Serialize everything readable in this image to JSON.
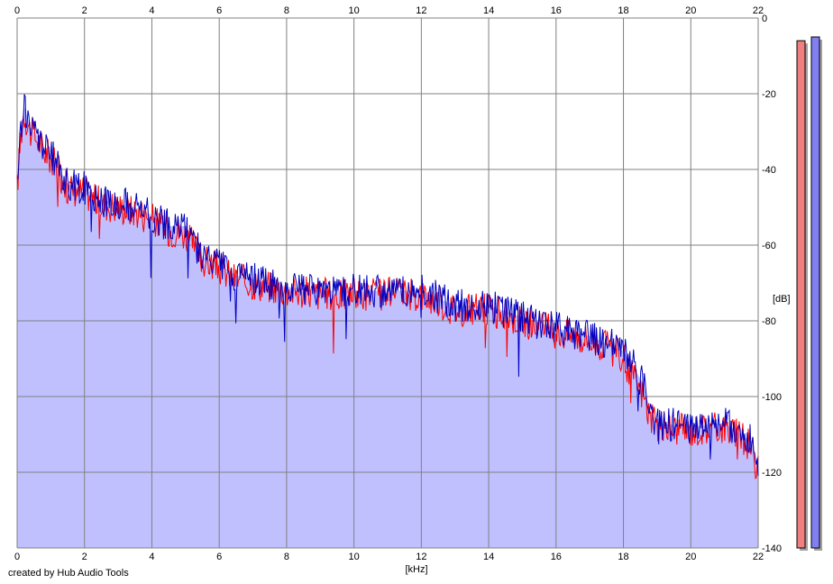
{
  "chart_data": {
    "type": "area",
    "xlabel": "[kHz]",
    "ylabel": "[dB]",
    "xlim": [
      0,
      22
    ],
    "ylim": [
      -140,
      0
    ],
    "x_ticks": [
      0,
      2,
      4,
      6,
      8,
      10,
      12,
      14,
      16,
      18,
      20,
      22
    ],
    "y_ticks": [
      0,
      -20,
      -40,
      -60,
      -80,
      -100,
      -120,
      -140
    ],
    "grid": true,
    "series": [
      {
        "color": "#ff0000",
        "x": [
          0,
          0.1,
          0.2,
          0.4,
          0.6,
          0.8,
          1.0,
          1.2,
          1.5,
          2.0,
          2.5,
          3.0,
          3.5,
          4.0,
          4.5,
          5.0,
          5.5,
          6.0,
          6.5,
          7.0,
          8.0,
          9.0,
          10.0,
          11.0,
          12.0,
          12.5,
          13.0,
          14.0,
          15.0,
          16.0,
          16.5,
          17.0,
          17.5,
          18.0,
          18.3,
          18.6,
          18.8,
          19.0,
          20.0,
          21.0,
          21.8,
          22.0
        ],
        "y": [
          -45,
          -32,
          -25,
          -30,
          -32,
          -35,
          -37,
          -40,
          -45,
          -46,
          -49,
          -50,
          -51,
          -53,
          -56,
          -57,
          -64,
          -66,
          -69,
          -70,
          -72,
          -73,
          -73,
          -73,
          -73,
          -75,
          -77,
          -77,
          -80,
          -83,
          -84,
          -85,
          -87,
          -90,
          -95,
          -100,
          -106,
          -108,
          -109,
          -108,
          -113,
          -120
        ]
      },
      {
        "color": "#0000c0",
        "x": [
          0,
          0.1,
          0.2,
          0.4,
          0.6,
          0.8,
          1.0,
          1.2,
          1.5,
          2.0,
          2.5,
          3.0,
          3.5,
          4.0,
          4.5,
          5.0,
          5.5,
          6.0,
          6.5,
          7.0,
          8.0,
          9.0,
          10.0,
          11.0,
          12.0,
          12.5,
          13.0,
          14.0,
          15.0,
          16.0,
          16.5,
          17.0,
          17.5,
          18.0,
          18.3,
          18.6,
          18.8,
          19.0,
          20.0,
          21.0,
          21.8,
          22.0
        ],
        "y": [
          -46,
          -30,
          -23,
          -29,
          -31,
          -34,
          -36,
          -39,
          -44,
          -45,
          -48,
          -49,
          -50,
          -52,
          -55,
          -55,
          -63,
          -65,
          -68,
          -69,
          -71,
          -72,
          -72,
          -72,
          -72,
          -74,
          -76,
          -76,
          -79,
          -82,
          -83,
          -84,
          -86,
          -88,
          -92,
          -97,
          -104,
          -107,
          -108,
          -107,
          -112,
          -121
        ]
      }
    ],
    "level_meters": [
      {
        "color": "#f08080",
        "level_db": -6
      },
      {
        "color": "#8080f0",
        "level_db": -5
      }
    ]
  },
  "footer": {
    "credit": "created by Hub Audio Tools"
  },
  "colors": {
    "fill": "#c0c0ff",
    "grid": "#808080",
    "meter_shadow": "#a0a0a0"
  }
}
